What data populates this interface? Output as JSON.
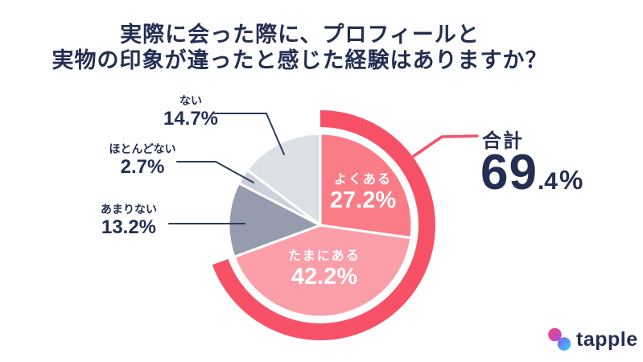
{
  "title": {
    "line1": "実際に会った際に、プロフィールと",
    "line2": "実物の印象が違ったと感じた経験はありますか？"
  },
  "chart_data": {
    "type": "pie",
    "title": "実際に会った際に、プロフィールと実物の印象が違ったと感じた経験はありますか？",
    "categories": [
      "よくある",
      "たまにある",
      "あまりない",
      "ほとんどない",
      "ない"
    ],
    "values": [
      27.2,
      42.2,
      13.2,
      2.7,
      14.7
    ],
    "display_values": [
      "27.2%",
      "42.2%",
      "13.2%",
      "2.7%",
      "14.7%"
    ],
    "unit": "%",
    "colors": [
      "#F97C87",
      "#FA9FA9",
      "#949CAD",
      "#CBD0DA",
      "#DCE0E6"
    ],
    "start_angle_deg": 0,
    "direction": "clockwise",
    "text_color": "#242E52",
    "highlight": {
      "label": "合計",
      "total": 69.4,
      "value_int": "69",
      "value_frac": ".4",
      "unit": "%",
      "includes": [
        "よくある",
        "たまにある"
      ],
      "color": "#F75168"
    }
  },
  "logo": {
    "brand": "tapple"
  }
}
